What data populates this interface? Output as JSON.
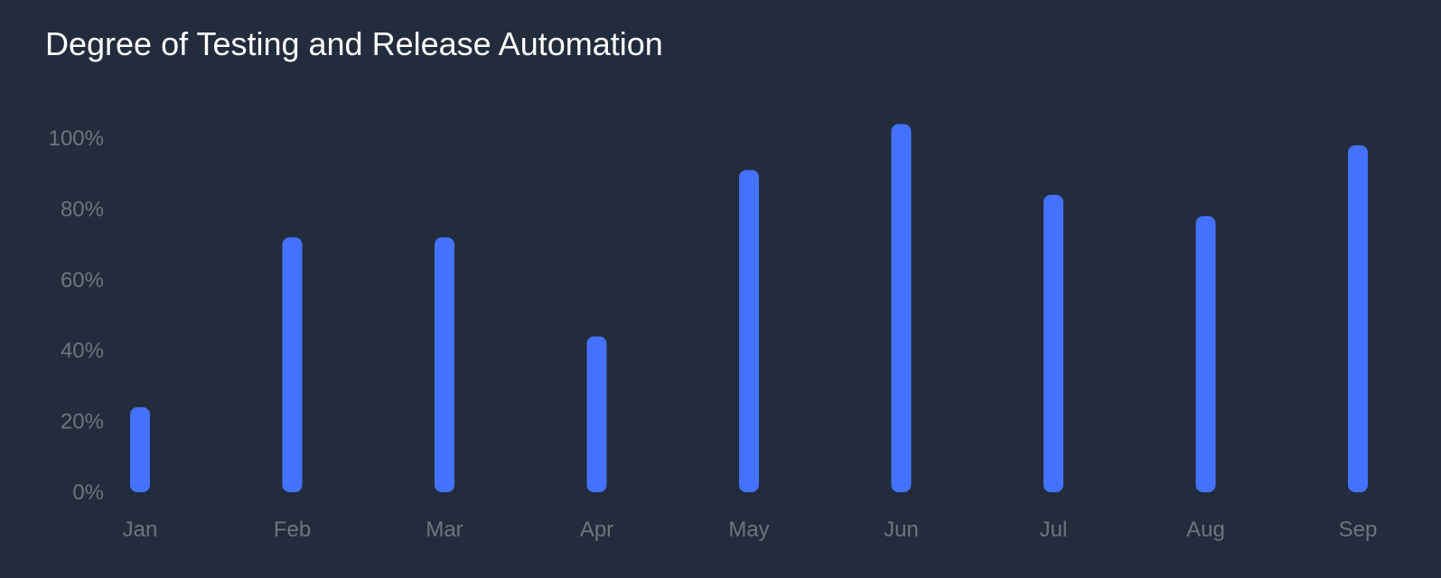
{
  "chart_data": {
    "type": "bar",
    "title": "Degree of Testing and Release Automation",
    "xlabel": "",
    "ylabel": "",
    "categories": [
      "Jan",
      "Feb",
      "Mar",
      "Apr",
      "May",
      "Jun",
      "Jul",
      "Aug",
      "Sep"
    ],
    "values": [
      24,
      72,
      72,
      44,
      91,
      104,
      84,
      78,
      98
    ],
    "ylim": [
      0,
      100
    ],
    "y_ticks": [
      "0%",
      "20%",
      "40%",
      "60%",
      "80%",
      "100%"
    ],
    "grid": false,
    "legend": "none",
    "bar_color": "#4472ff",
    "text_color": "#6f747d",
    "background": "#232c3c"
  }
}
